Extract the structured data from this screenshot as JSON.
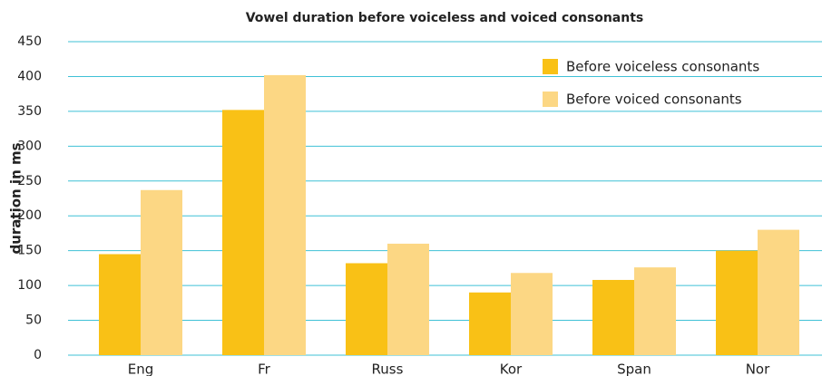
{
  "chart_data": {
    "type": "bar",
    "title": "Vowel duration before voiceless and voiced consonants",
    "y_label": "duration in ms",
    "categories": [
      "Eng",
      "Fr",
      "Russ",
      "Kor",
      "Span",
      "Nor"
    ],
    "series": [
      {
        "name": "Before voiceless consonants",
        "color": "#f9c116",
        "values": [
          145,
          352,
          132,
          90,
          108,
          150
        ]
      },
      {
        "name": "Before voiced consonants",
        "color": "#fcd784",
        "values": [
          237,
          402,
          160,
          118,
          126,
          180
        ]
      }
    ],
    "ylim": [
      0,
      450
    ],
    "yticks": [
      0,
      50,
      100,
      150,
      200,
      250,
      300,
      350,
      400,
      450
    ],
    "grid": true,
    "legend": "top-right"
  }
}
